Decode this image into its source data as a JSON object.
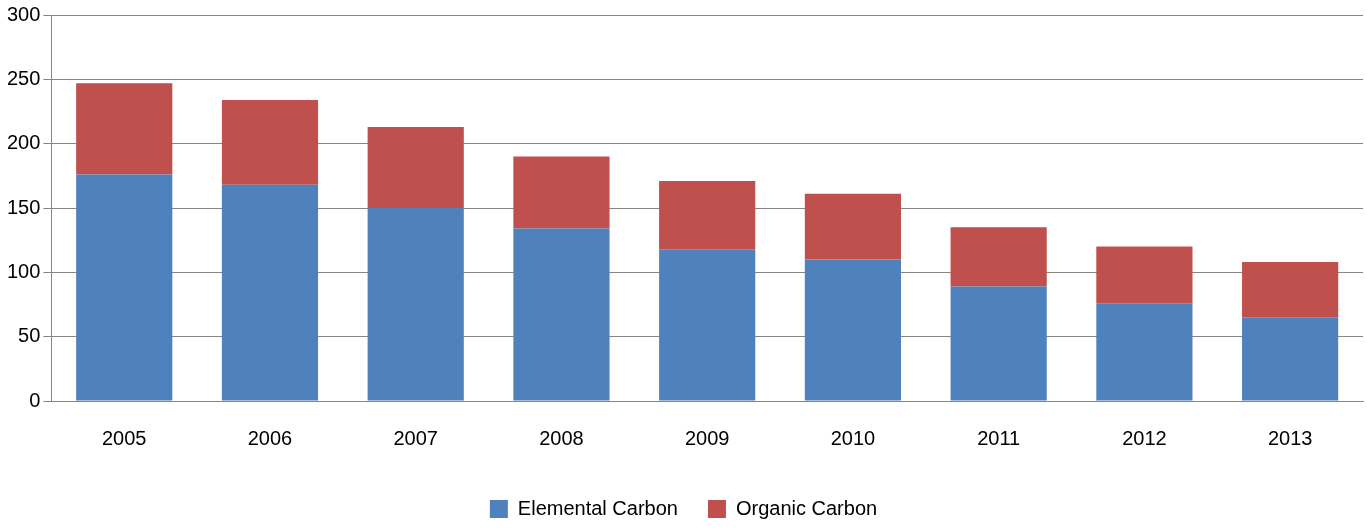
{
  "chart_data": {
    "type": "bar",
    "stacked": true,
    "categories": [
      "2005",
      "2006",
      "2007",
      "2008",
      "2009",
      "2010",
      "2011",
      "2012",
      "2013"
    ],
    "series": [
      {
        "name": "Elemental Carbon",
        "color": "#4f81bd",
        "values": [
          176,
          168,
          150,
          134,
          118,
          110,
          89,
          76,
          65
        ]
      },
      {
        "name": "Organic Carbon",
        "color": "#c0504d",
        "values": [
          71,
          66,
          63,
          56,
          53,
          51,
          46,
          44,
          43
        ]
      }
    ],
    "ylim": [
      0,
      300
    ],
    "yticks": [
      0,
      50,
      100,
      150,
      200,
      250,
      300
    ],
    "grid": "y",
    "legend": "bottom"
  }
}
